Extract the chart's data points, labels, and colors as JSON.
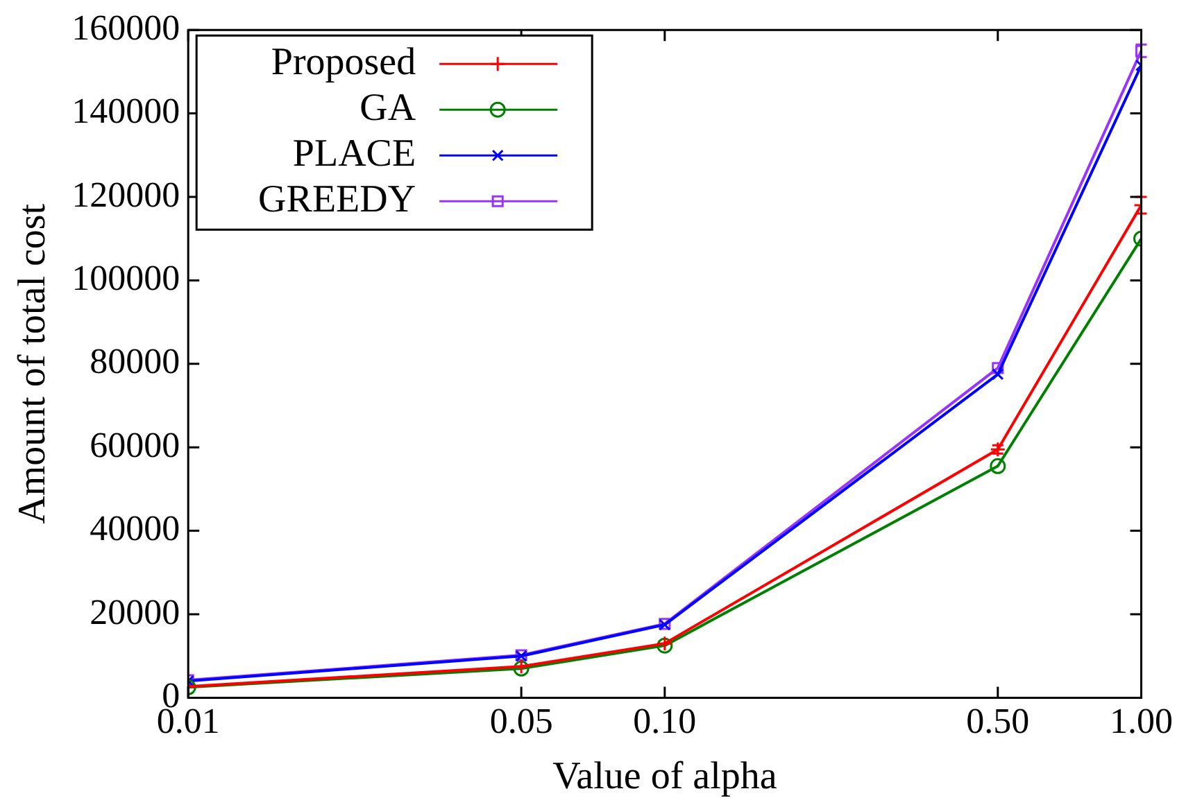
{
  "chart_data": {
    "type": "line",
    "xlabel": "Value of alpha",
    "ylabel": "Amount of total cost",
    "log": "x",
    "x": [
      0.01,
      0.05,
      0.1,
      0.5,
      1.0
    ],
    "xlim": [
      0.01,
      1.0
    ],
    "xticks": [
      {
        "value": 0.01,
        "label": "0.01"
      },
      {
        "value": 0.05,
        "label": "0.05"
      },
      {
        "value": 0.1,
        "label": "0.10"
      },
      {
        "value": 0.5,
        "label": "0.50"
      },
      {
        "value": 1.0,
        "label": "1.00"
      }
    ],
    "ylim": [
      0,
      160000
    ],
    "yticks": [
      0,
      20000,
      40000,
      60000,
      80000,
      100000,
      120000,
      140000,
      160000
    ],
    "grid": false,
    "legend": "top left",
    "line_style": "solid",
    "series": [
      {
        "name": "Proposed",
        "color": "#ff0000",
        "marker": "plus",
        "values": [
          2700,
          7500,
          13000,
          59500,
          118000
        ],
        "errors": [
          null,
          null,
          null,
          1000,
          2000
        ]
      },
      {
        "name": "GA",
        "color": "#008000",
        "marker": "circle",
        "values": [
          2500,
          7000,
          12500,
          55500,
          110000
        ]
      },
      {
        "name": "PLACE",
        "color": "#0000ff",
        "marker": "cross",
        "values": [
          4000,
          10000,
          17500,
          77500,
          151500
        ]
      },
      {
        "name": "GREEDY",
        "color": "#9933ff",
        "marker": "square",
        "values": [
          4200,
          10200,
          17700,
          79000,
          155000
        ],
        "errors": [
          null,
          null,
          null,
          null,
          1500
        ]
      }
    ]
  }
}
